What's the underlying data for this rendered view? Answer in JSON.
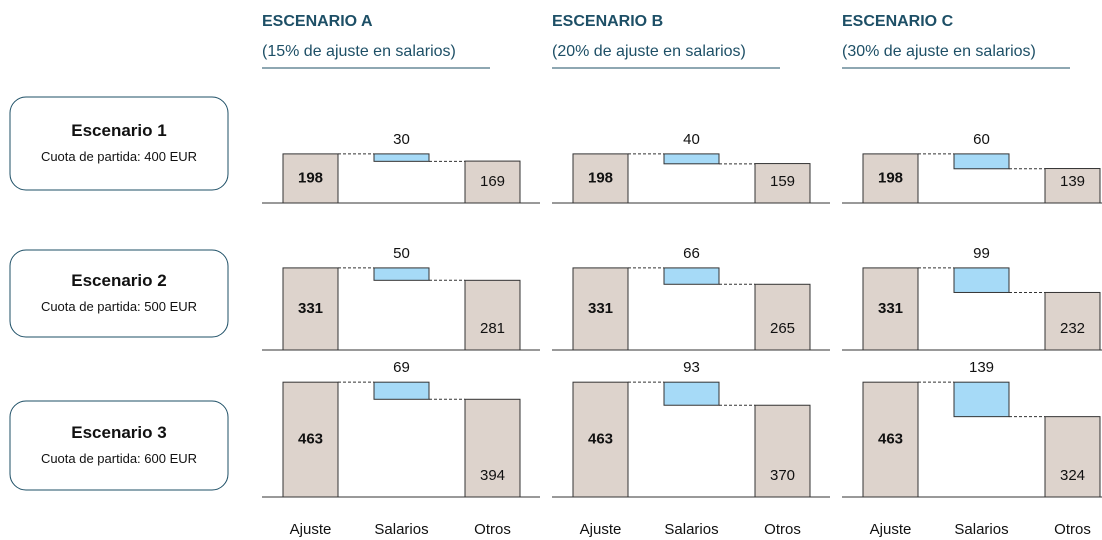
{
  "columns": [
    {
      "title": "ESCENARIO A",
      "subtitle": "(15% de ajuste en salarios)"
    },
    {
      "title": "ESCENARIO B",
      "subtitle": "(20% de ajuste en salarios)"
    },
    {
      "title": "ESCENARIO C",
      "subtitle": "(30% de ajuste en salarios)"
    }
  ],
  "rows": [
    {
      "title": "Escenario 1",
      "subtitle": "Cuota de partida: 400 EUR"
    },
    {
      "title": "Escenario 2",
      "subtitle": "Cuota de partida: 500 EUR"
    },
    {
      "title": "Escenario 3",
      "subtitle": "Cuota de partida: 600 EUR"
    }
  ],
  "categories": [
    "Ajuste",
    "Salarios",
    "Otros"
  ],
  "colors": {
    "total": "#ddd3cc",
    "change": "#a6daf7"
  },
  "chart_data": [
    {
      "type": "waterfall",
      "values": [
        198,
        30,
        169
      ]
    },
    {
      "type": "waterfall",
      "values": [
        198,
        40,
        159
      ]
    },
    {
      "type": "waterfall",
      "values": [
        198,
        60,
        139
      ]
    },
    {
      "type": "waterfall",
      "values": [
        331,
        50,
        281
      ]
    },
    {
      "type": "waterfall",
      "values": [
        331,
        66,
        265
      ]
    },
    {
      "type": "waterfall",
      "values": [
        331,
        99,
        232
      ]
    },
    {
      "type": "waterfall",
      "values": [
        463,
        69,
        394
      ]
    },
    {
      "type": "waterfall",
      "values": [
        463,
        93,
        370
      ]
    },
    {
      "type": "waterfall",
      "values": [
        463,
        139,
        324
      ]
    }
  ]
}
